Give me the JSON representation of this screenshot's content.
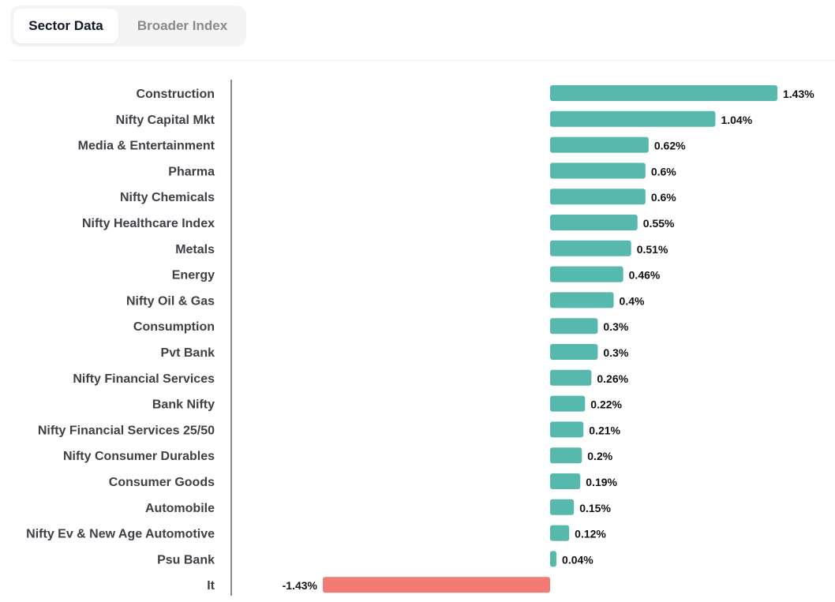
{
  "tabs": [
    {
      "label": "Sector Data",
      "active": true
    },
    {
      "label": "Broader Index",
      "active": false
    }
  ],
  "colors": {
    "positive": "#57b8ae",
    "negative": "#f47a76"
  },
  "chart_data": {
    "type": "bar",
    "orientation": "horizontal",
    "categories": [
      "Construction",
      "Nifty Capital Mkt",
      "Media & Entertainment",
      "Pharma",
      "Nifty Chemicals",
      "Nifty Healthcare Index",
      "Metals",
      "Energy",
      "Nifty Oil & Gas",
      "Consumption",
      "Pvt Bank",
      "Nifty Financial Services",
      "Bank Nifty",
      "Nifty Financial Services 25/50",
      "Nifty Consumer Durables",
      "Consumer Goods",
      "Automobile",
      "Nifty Ev & New Age Automotive",
      "Psu Bank",
      "It"
    ],
    "values": [
      1.43,
      1.04,
      0.62,
      0.6,
      0.6,
      0.55,
      0.51,
      0.46,
      0.4,
      0.3,
      0.3,
      0.26,
      0.22,
      0.21,
      0.2,
      0.19,
      0.15,
      0.12,
      0.04,
      -1.43
    ],
    "value_labels": [
      "1.43%",
      "1.04%",
      "0.62%",
      "0.6%",
      "0.6%",
      "0.55%",
      "0.51%",
      "0.46%",
      "0.4%",
      "0.3%",
      "0.3%",
      "0.26%",
      "0.22%",
      "0.21%",
      "0.2%",
      "0.19%",
      "0.15%",
      "0.12%",
      "0.04%",
      "-1.43%"
    ],
    "title": "",
    "xlabel": "",
    "ylabel": "",
    "xlim": [
      -2,
      1.8
    ],
    "grid": false,
    "legend": "none"
  }
}
